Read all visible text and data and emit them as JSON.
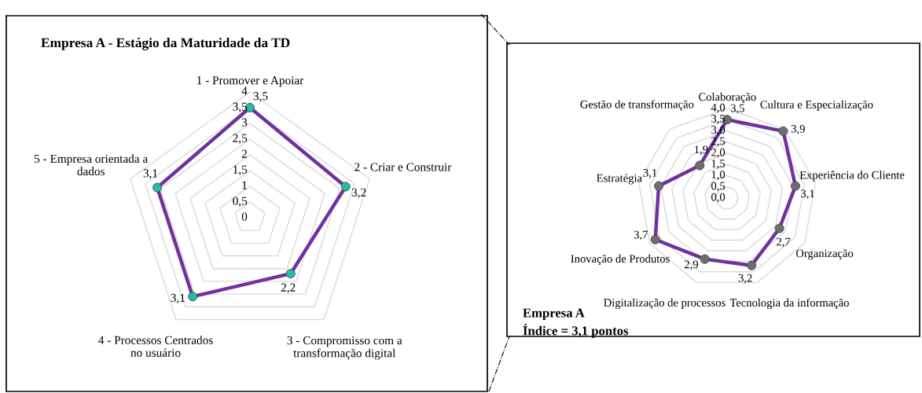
{
  "chart_data": [
    {
      "type": "radar",
      "title": "Empresa A - Estágio da Maturidade da TD",
      "categories": [
        "1 - Promover e Apoiar",
        "2 - Criar e Construir",
        "3 - Compromisso com a\ntransformação digital",
        "4 - Processos Centrados\nno usuário",
        "5 - Empresa orientada a\ndados"
      ],
      "series": [
        {
          "color": "#7030a0",
          "colors": [
            "#1fbfa0",
            "#1fbfa0",
            "#1fbfa0",
            "#1fbfa0",
            "#1fbfa0"
          ],
          "values": [
            3.5,
            3.2,
            2.2,
            3.1,
            3.1
          ],
          "value_labels": [
            "3,5",
            "3,2",
            "2,2",
            "3,1",
            "3,1"
          ]
        }
      ],
      "ylim": [
        0,
        4
      ],
      "yticks": [
        0,
        {
          "value": 0.5,
          "label": "0,5"
        },
        1,
        {
          "value": 1.5,
          "label": "1,5"
        },
        2,
        {
          "value": 2.5,
          "label": "2,5"
        },
        3,
        {
          "value": 3.5,
          "label": "3,5"
        },
        4
      ],
      "grid": true,
      "marker": "circle"
    },
    {
      "type": "radar",
      "title": "Empresa A",
      "subtitle": "Índice = 3,1 pontos",
      "categories": [
        "Colaboração",
        "Cultura e Especialização",
        "Experiência do Cliente",
        "Organização",
        "Tecnologia da informação",
        "Digitalização de processos",
        "Inovação de Produtos",
        "Estratégia",
        "Gestão de transformação"
      ],
      "series": [
        {
          "color": "#7030a0",
          "colors": [
            "#6e6e6e",
            "#6e6e6e",
            "#6e6e6e",
            "#6e6e6e",
            "#6e6e6e",
            "#6e6e6e",
            "#6e6e6e",
            "#6e6e6e",
            "#6e6e6e"
          ],
          "values": [
            3.5,
            3.9,
            3.1,
            2.7,
            3.2,
            2.9,
            3.7,
            3.1,
            1.9
          ],
          "value_labels": [
            "3,5",
            "3,9",
            "3,1",
            "2,7",
            "3,2",
            "2,9",
            "3,7",
            "3,1",
            "1,9"
          ]
        }
      ],
      "ylim": [
        0,
        4
      ],
      "yticks": [
        {
          "value": 0,
          "label": "0,0"
        },
        {
          "value": 0.5,
          "label": "0,5"
        },
        {
          "value": 1,
          "label": "1,0"
        },
        {
          "value": 1.5,
          "label": "1,5"
        },
        {
          "value": 2,
          "label": "2,0"
        },
        {
          "value": 2.5,
          "label": "2,5"
        },
        {
          "value": 3,
          "label": "3,0"
        },
        {
          "value": 3.5,
          "label": "3,5"
        },
        {
          "value": 4,
          "label": "4,0"
        }
      ],
      "grid": true,
      "marker": "circle"
    }
  ]
}
